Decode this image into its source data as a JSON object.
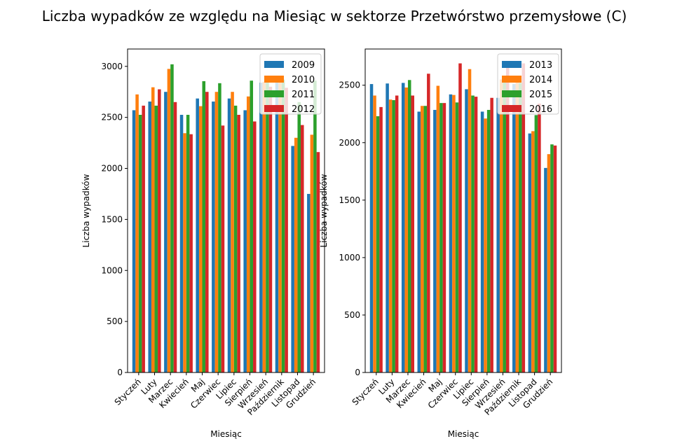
{
  "figure": {
    "title": "Liczba wypadków ze względu na Miesiąc w sektorze Przetwórstwo przemysłowe (C)",
    "colors": [
      "#1f77b4",
      "#ff7f0e",
      "#2ca02c",
      "#d62728"
    ]
  },
  "chart_data": [
    {
      "type": "bar",
      "xlabel": "Miesiąc",
      "ylabel": "Liczba wypadków",
      "ylim": [
        0,
        3170
      ],
      "yticks": [
        0,
        500,
        1000,
        1500,
        2000,
        2500,
        3000
      ],
      "legend_position": "top-right",
      "categories": [
        "Styczeń",
        "Luty",
        "Marzec",
        "Kwiecień",
        "Maj",
        "Czerwiec",
        "Lipiec",
        "Sierpień",
        "Wrzesień",
        "Październik",
        "Listopad",
        "Grudzień"
      ],
      "series": [
        {
          "name": "2009",
          "values": [
            2570,
            2655,
            2750,
            2525,
            2685,
            2655,
            2685,
            2570,
            2840,
            2840,
            2220,
            1750
          ]
        },
        {
          "name": "2010",
          "values": [
            2725,
            2795,
            2975,
            2345,
            2610,
            2750,
            2750,
            2705,
            2850,
            2890,
            2300,
            2330
          ]
        },
        {
          "name": "2011",
          "values": [
            2525,
            2615,
            3020,
            2525,
            2855,
            2835,
            2615,
            2860,
            2840,
            2870,
            2650,
            2860
          ]
        },
        {
          "name": "2012",
          "values": [
            2615,
            2775,
            2650,
            2335,
            2750,
            2420,
            2525,
            2460,
            2800,
            2790,
            2425,
            2160
          ]
        }
      ]
    },
    {
      "type": "bar",
      "xlabel": "Miesiąc",
      "ylabel": "Liczba wypadków",
      "ylim": [
        0,
        2815
      ],
      "yticks": [
        0,
        500,
        1000,
        1500,
        2000,
        2500
      ],
      "legend_position": "top-right",
      "categories": [
        "Styczeń",
        "Luty",
        "Marzec",
        "Kwiecień",
        "Maj",
        "Czerwiec",
        "Lipiec",
        "Sierpień",
        "Wrzesień",
        "Październik",
        "Listopad",
        "Grudzień"
      ],
      "series": [
        {
          "name": "2013",
          "values": [
            2510,
            2515,
            2520,
            2270,
            2285,
            2420,
            2465,
            2270,
            2390,
            2510,
            2080,
            1780
          ]
        },
        {
          "name": "2014",
          "values": [
            2410,
            2375,
            2480,
            2320,
            2495,
            2415,
            2640,
            2210,
            2550,
            2540,
            2100,
            1900
          ]
        },
        {
          "name": "2015",
          "values": [
            2230,
            2370,
            2545,
            2320,
            2345,
            2350,
            2410,
            2285,
            2550,
            2520,
            2240,
            1985
          ]
        },
        {
          "name": "2016",
          "values": [
            2310,
            2410,
            2410,
            2600,
            2345,
            2690,
            2400,
            2390,
            2700,
            2690,
            2340,
            1975
          ]
        }
      ]
    }
  ]
}
